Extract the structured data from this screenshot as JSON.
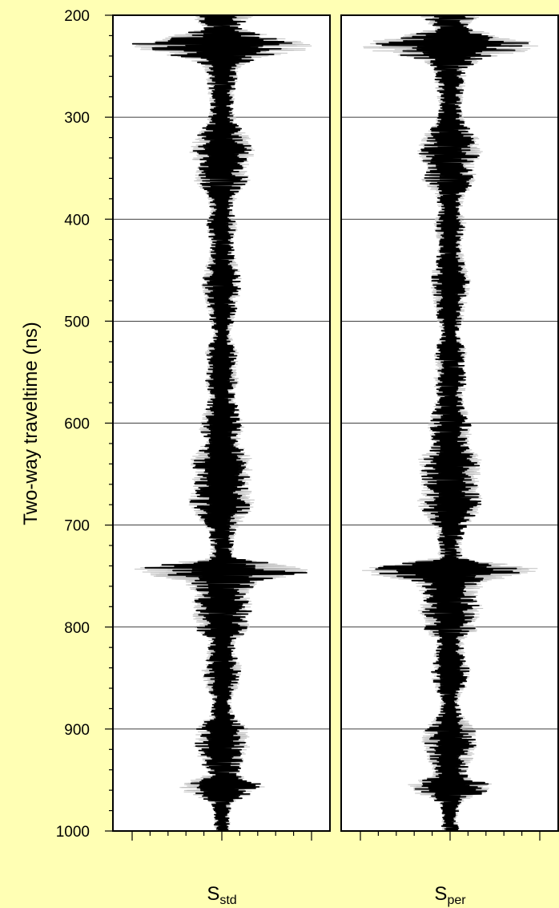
{
  "chart_data": {
    "type": "line",
    "ylabel": "Two-way traveltime (ns)",
    "ylim": [
      200,
      1000
    ],
    "yticks": [
      200,
      300,
      400,
      500,
      600,
      700,
      800,
      900,
      1000
    ],
    "y_inverted": true,
    "grid": "horizontal at major ticks",
    "panels": [
      {
        "label_main": "S",
        "label_sub": "std"
      },
      {
        "label_main": "S",
        "label_sub": "per"
      }
    ],
    "trace_envelope": [
      [
        200,
        0.35
      ],
      [
        212,
        0.18
      ],
      [
        222,
        0.6
      ],
      [
        228,
        1.0
      ],
      [
        235,
        0.85
      ],
      [
        242,
        0.4
      ],
      [
        252,
        0.18
      ],
      [
        275,
        0.15
      ],
      [
        290,
        0.12
      ],
      [
        305,
        0.16
      ],
      [
        320,
        0.3
      ],
      [
        335,
        0.35
      ],
      [
        350,
        0.26
      ],
      [
        362,
        0.3
      ],
      [
        375,
        0.17
      ],
      [
        392,
        0.12
      ],
      [
        405,
        0.18
      ],
      [
        425,
        0.12
      ],
      [
        445,
        0.17
      ],
      [
        462,
        0.22
      ],
      [
        480,
        0.18
      ],
      [
        500,
        0.14
      ],
      [
        512,
        0.08
      ],
      [
        530,
        0.18
      ],
      [
        545,
        0.16
      ],
      [
        560,
        0.18
      ],
      [
        575,
        0.14
      ],
      [
        590,
        0.2
      ],
      [
        605,
        0.24
      ],
      [
        620,
        0.2
      ],
      [
        635,
        0.33
      ],
      [
        650,
        0.32
      ],
      [
        665,
        0.3
      ],
      [
        678,
        0.36
      ],
      [
        690,
        0.28
      ],
      [
        705,
        0.16
      ],
      [
        720,
        0.12
      ],
      [
        732,
        0.14
      ],
      [
        742,
        0.9
      ],
      [
        747,
        0.95
      ],
      [
        755,
        0.4
      ],
      [
        770,
        0.28
      ],
      [
        782,
        0.35
      ],
      [
        795,
        0.28
      ],
      [
        805,
        0.3
      ],
      [
        812,
        0.14
      ],
      [
        825,
        0.16
      ],
      [
        842,
        0.22
      ],
      [
        858,
        0.18
      ],
      [
        870,
        0.1
      ],
      [
        885,
        0.12
      ],
      [
        900,
        0.28
      ],
      [
        915,
        0.3
      ],
      [
        930,
        0.24
      ],
      [
        945,
        0.18
      ],
      [
        955,
        0.46
      ],
      [
        962,
        0.4
      ],
      [
        972,
        0.12
      ],
      [
        985,
        0.08
      ],
      [
        1000,
        0.1
      ]
    ],
    "trace_color": "#000000",
    "envelope_color": "#b4b4b4",
    "background_color": "#ffffb4"
  }
}
